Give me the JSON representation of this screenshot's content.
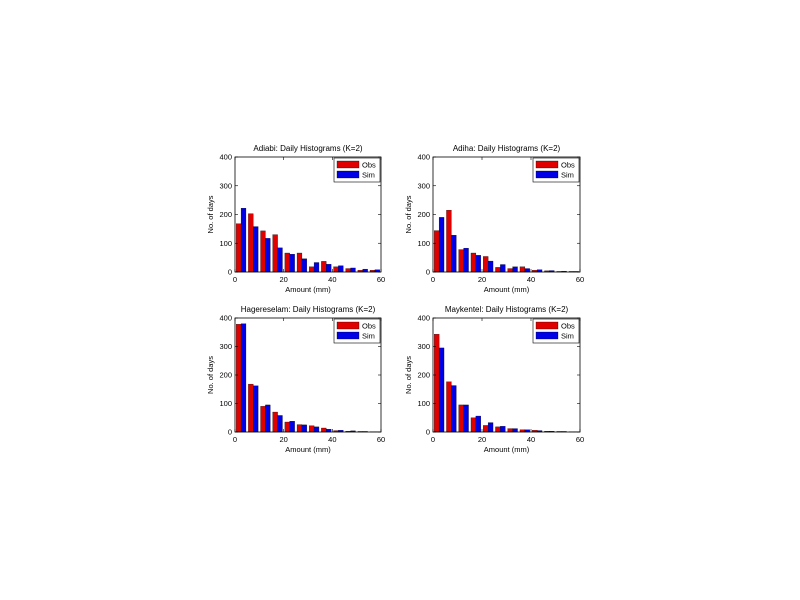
{
  "figure": {
    "colors": {
      "obs": "#e00000",
      "sim": "#0000e6",
      "axis": "#000000",
      "background": "#ffffff"
    },
    "legend_position": "top-right"
  },
  "chart_data": [
    {
      "type": "bar",
      "title": "Adiabi: Daily Histograms (K=2)",
      "xlabel": "Amount (mm)",
      "ylabel": "No. of days",
      "xlim": [
        0,
        60
      ],
      "ylim": [
        0,
        400
      ],
      "xticks": [
        0,
        20,
        40,
        60
      ],
      "yticks": [
        0,
        100,
        200,
        300,
        400
      ],
      "grid": false,
      "x": [
        2.5,
        7.5,
        12.5,
        17.5,
        22.5,
        27.5,
        32.5,
        37.5,
        42.5,
        47.5,
        52.5,
        57.5
      ],
      "series": [
        {
          "name": "Obs",
          "values": [
            168,
            203,
            143,
            130,
            66,
            66,
            18,
            37,
            18,
            12,
            6,
            6
          ]
        },
        {
          "name": "Sim",
          "values": [
            222,
            158,
            117,
            84,
            62,
            46,
            33,
            27,
            22,
            14,
            10,
            8
          ]
        }
      ]
    },
    {
      "type": "bar",
      "title": "Adiha: Daily Histograms (K=2)",
      "xlabel": "Amount (mm)",
      "ylabel": "No. of days",
      "xlim": [
        0,
        60
      ],
      "ylim": [
        0,
        400
      ],
      "xticks": [
        0,
        20,
        40,
        60
      ],
      "yticks": [
        0,
        100,
        200,
        300,
        400
      ],
      "grid": false,
      "x": [
        2.5,
        7.5,
        12.5,
        17.5,
        22.5,
        27.5,
        32.5,
        37.5,
        42.5,
        47.5,
        52.5,
        57.5
      ],
      "series": [
        {
          "name": "Obs",
          "values": [
            144,
            215,
            78,
            66,
            54,
            16,
            12,
            18,
            6,
            4,
            2,
            2
          ]
        },
        {
          "name": "Sim",
          "values": [
            190,
            128,
            83,
            58,
            38,
            26,
            18,
            12,
            8,
            5,
            3,
            2
          ]
        }
      ]
    },
    {
      "type": "bar",
      "title": "Hagereselam: Daily Histograms (K=2)",
      "xlabel": "Amount (mm)",
      "ylabel": "No. of days",
      "xlim": [
        0,
        60
      ],
      "ylim": [
        0,
        400
      ],
      "xticks": [
        0,
        20,
        40,
        60
      ],
      "yticks": [
        0,
        100,
        200,
        300,
        400
      ],
      "grid": false,
      "x": [
        2.5,
        7.5,
        12.5,
        17.5,
        22.5,
        27.5,
        32.5,
        37.5,
        42.5,
        47.5,
        52.5,
        57.5
      ],
      "series": [
        {
          "name": "Obs",
          "values": [
            378,
            168,
            90,
            70,
            35,
            26,
            22,
            14,
            5,
            3,
            2,
            1
          ]
        },
        {
          "name": "Sim",
          "values": [
            380,
            162,
            95,
            58,
            38,
            25,
            18,
            10,
            6,
            4,
            2,
            1
          ]
        }
      ]
    },
    {
      "type": "bar",
      "title": "Maykentel: Daily Histograms (K=2)",
      "xlabel": "Amount (mm)",
      "ylabel": "No. of days",
      "xlim": [
        0,
        60
      ],
      "ylim": [
        0,
        400
      ],
      "xticks": [
        0,
        20,
        40,
        60
      ],
      "yticks": [
        0,
        100,
        200,
        300,
        400
      ],
      "grid": false,
      "x": [
        2.5,
        7.5,
        12.5,
        17.5,
        22.5,
        27.5,
        32.5,
        37.5,
        42.5,
        47.5,
        52.5,
        57.5
      ],
      "series": [
        {
          "name": "Obs",
          "values": [
            343,
            176,
            95,
            50,
            23,
            18,
            12,
            8,
            6,
            3,
            2,
            1
          ]
        },
        {
          "name": "Sim",
          "values": [
            295,
            163,
            95,
            56,
            33,
            20,
            12,
            8,
            5,
            3,
            2,
            1
          ]
        }
      ]
    }
  ]
}
